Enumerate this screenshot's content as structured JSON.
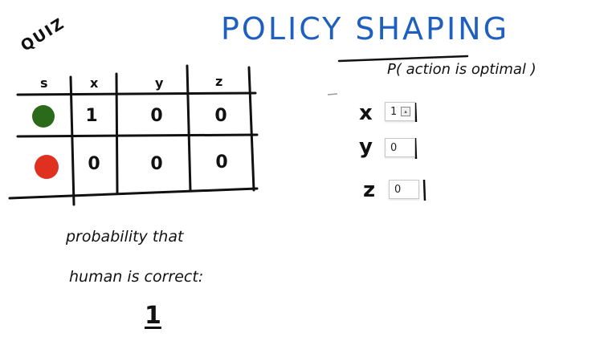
{
  "quiz_label": "QUIZ",
  "title": "POLICY SHAPING",
  "colors": {
    "title": "#1f5fbf",
    "ink": "#111111",
    "green_state": "#2a6a1a",
    "red_state": "#e03020"
  },
  "table": {
    "headers": [
      "s",
      "x",
      "y",
      "z"
    ],
    "rows": [
      {
        "state_icon": "green-circle-icon",
        "values": [
          "1",
          "0",
          "0"
        ]
      },
      {
        "state_icon": "red-circle-icon",
        "values": [
          "0",
          "0",
          "0"
        ]
      }
    ]
  },
  "probability_header": "P( action is optimal )",
  "actions": [
    {
      "label": "x",
      "value": "1"
    },
    {
      "label": "y",
      "value": "0"
    },
    {
      "label": "z",
      "value": "0"
    }
  ],
  "human_correct": {
    "line1": "probability that",
    "line2": "human is correct:",
    "value": "1"
  }
}
